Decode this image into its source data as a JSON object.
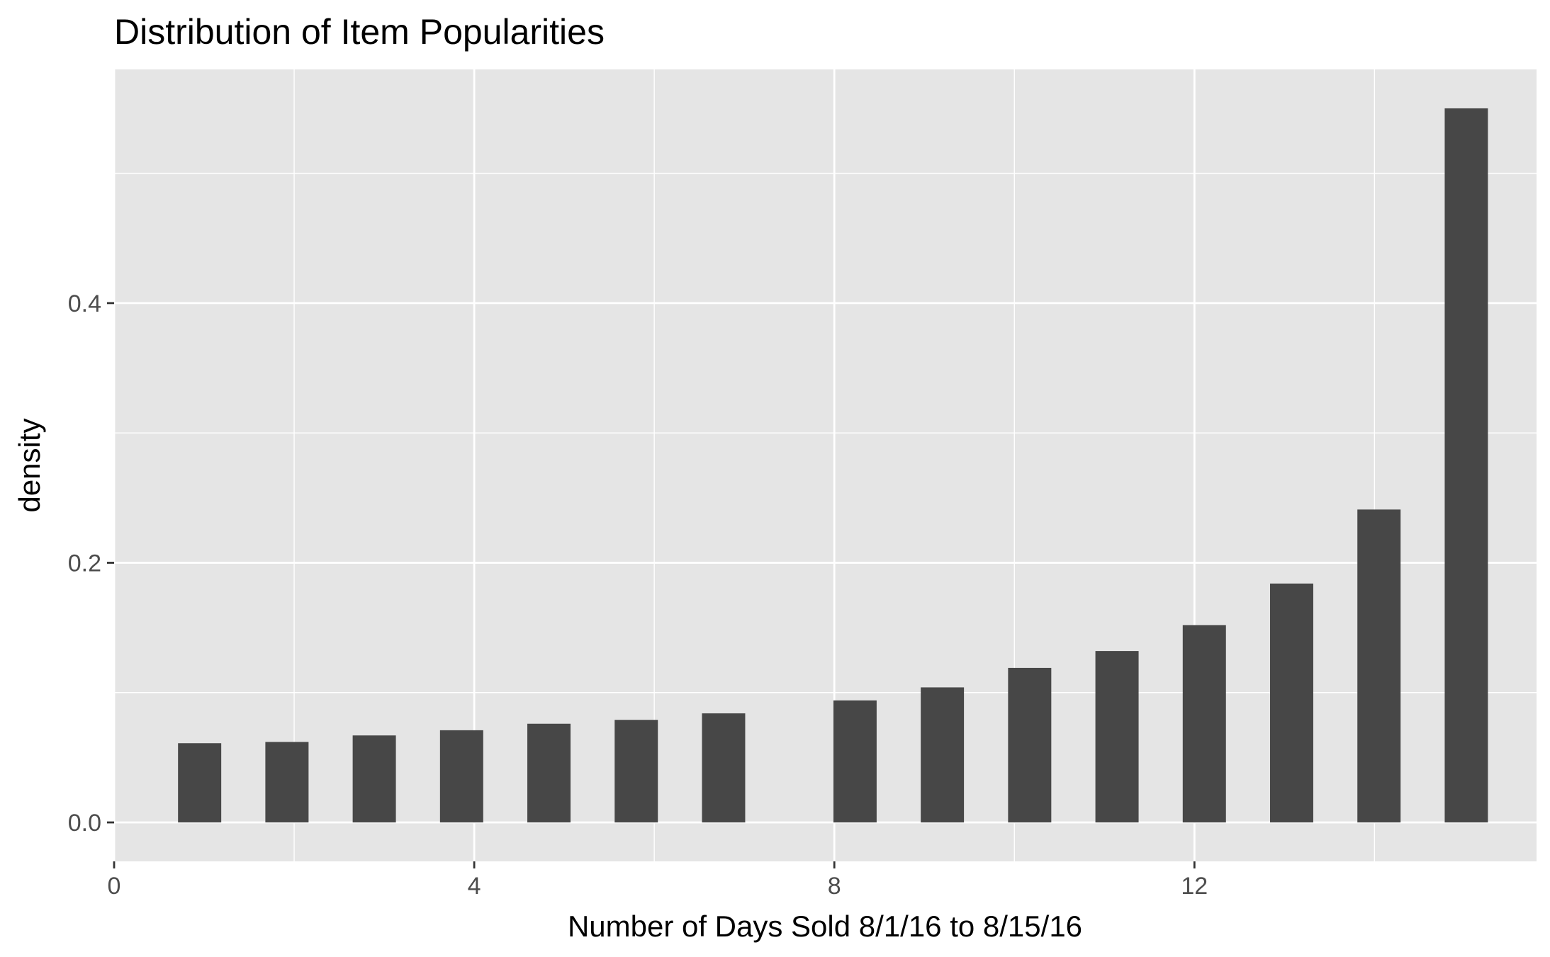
{
  "chart_data": {
    "type": "bar",
    "title": "Distribution of Item Popularities",
    "xlabel": "Number of Days Sold 8/1/16 to 8/15/16",
    "ylabel": "density",
    "xlim": [
      0,
      15.8
    ],
    "ylim": [
      -0.03,
      0.58
    ],
    "x_ticks": [
      0,
      4,
      8,
      12
    ],
    "x_tick_labels": [
      "0",
      "4",
      "8",
      "12"
    ],
    "y_ticks": [
      0.0,
      0.2,
      0.4
    ],
    "y_tick_labels": [
      "0.0",
      "0.2",
      "0.4"
    ],
    "bar_width": 0.48,
    "grid": true,
    "colors": {
      "panel_background": "#e5e5e5",
      "grid": "#ffffff",
      "bar_fill": "#474747",
      "tick_text": "#4d4d4d",
      "text": "#000000"
    },
    "bars": [
      {
        "x": 0.95,
        "value": 0.061
      },
      {
        "x": 1.92,
        "value": 0.062
      },
      {
        "x": 2.89,
        "value": 0.067
      },
      {
        "x": 3.86,
        "value": 0.071
      },
      {
        "x": 4.83,
        "value": 0.076
      },
      {
        "x": 5.8,
        "value": 0.079
      },
      {
        "x": 6.77,
        "value": 0.084
      },
      {
        "x": 8.23,
        "value": 0.094
      },
      {
        "x": 9.2,
        "value": 0.104
      },
      {
        "x": 10.17,
        "value": 0.119
      },
      {
        "x": 11.14,
        "value": 0.132
      },
      {
        "x": 12.11,
        "value": 0.152
      },
      {
        "x": 13.08,
        "value": 0.184
      },
      {
        "x": 14.05,
        "value": 0.241
      },
      {
        "x": 15.02,
        "value": 0.55
      }
    ]
  }
}
